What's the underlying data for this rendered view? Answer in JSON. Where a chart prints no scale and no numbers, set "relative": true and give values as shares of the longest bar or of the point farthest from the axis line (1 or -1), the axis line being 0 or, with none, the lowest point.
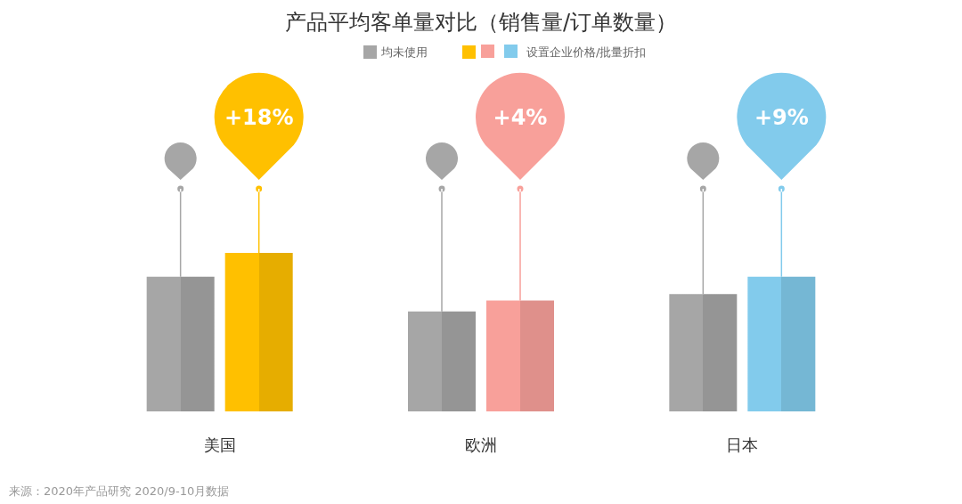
{
  "chart_data": {
    "type": "bar",
    "title": "产品平均客单量对比（销售量/订单数量）",
    "categories": [
      "美国",
      "欧洲",
      "日本"
    ],
    "relative": true,
    "legend": "top",
    "series": [
      {
        "name": "均未使用",
        "color": "#a6a6a6",
        "values": [
          0.85,
          0.63,
          0.74
        ]
      },
      {
        "name": "设置企业价格/批量折扣",
        "colors": [
          "#ffc000",
          "#f8a09a",
          "#82cbec"
        ],
        "values": [
          1,
          0.7,
          0.85
        ]
      }
    ],
    "annotations": [
      "+18%",
      "+4%",
      "+9%",
      "来源：2020年产品研究 2020/9-10月数据"
    ]
  }
}
